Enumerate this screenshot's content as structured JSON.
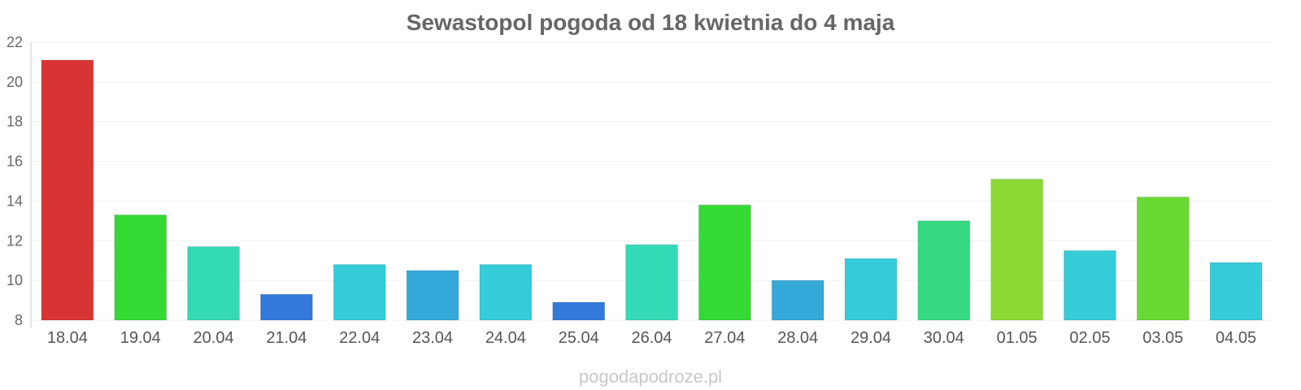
{
  "chart_data": {
    "type": "bar",
    "title": "Sewastopol pogoda od 18 kwietnia do 4 maja",
    "xlabel": "",
    "ylabel": "",
    "ylim": [
      8,
      22
    ],
    "yticks": [
      8,
      10,
      12,
      14,
      16,
      18,
      20,
      22
    ],
    "grid": true,
    "categories": [
      "18.04",
      "19.04",
      "20.04",
      "21.04",
      "22.04",
      "23.04",
      "24.04",
      "25.04",
      "26.04",
      "27.04",
      "28.04",
      "29.04",
      "30.04",
      "01.05",
      "02.05",
      "03.05",
      "04.05"
    ],
    "values": [
      21.1,
      13.3,
      11.7,
      9.3,
      10.8,
      10.5,
      10.8,
      8.9,
      11.8,
      13.8,
      10.0,
      11.1,
      13.0,
      15.1,
      11.5,
      14.2,
      10.9
    ],
    "colors": [
      "#d93434",
      "#34d934",
      "#34d9b5",
      "#3478d9",
      "#34ccd9",
      "#34a9d9",
      "#34ccd9",
      "#3478d9",
      "#34d9b5",
      "#34d934",
      "#34a9d9",
      "#34ccd9",
      "#34d982",
      "#8cd934",
      "#34ccd9",
      "#6ad934",
      "#34ccd9"
    ],
    "watermark": "pogodapodroze.pl"
  }
}
